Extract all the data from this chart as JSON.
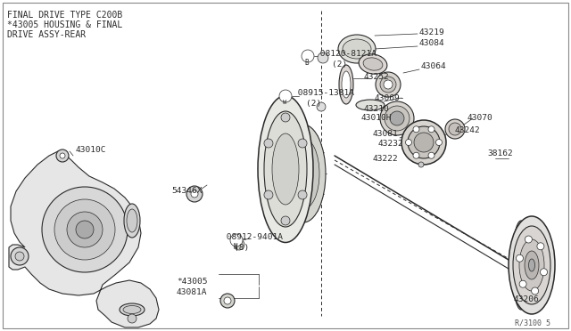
{
  "bg_color": "#ffffff",
  "line_color": "#2a2a2a",
  "title_lines": [
    "FINAL DRIVE TYPE C200B",
    "*43005 HOUSING & FINAL",
    "DRIVE ASSY-REAR"
  ],
  "ref_code": "R/3100 5",
  "figsize": [
    6.4,
    3.72
  ],
  "dpi": 100
}
